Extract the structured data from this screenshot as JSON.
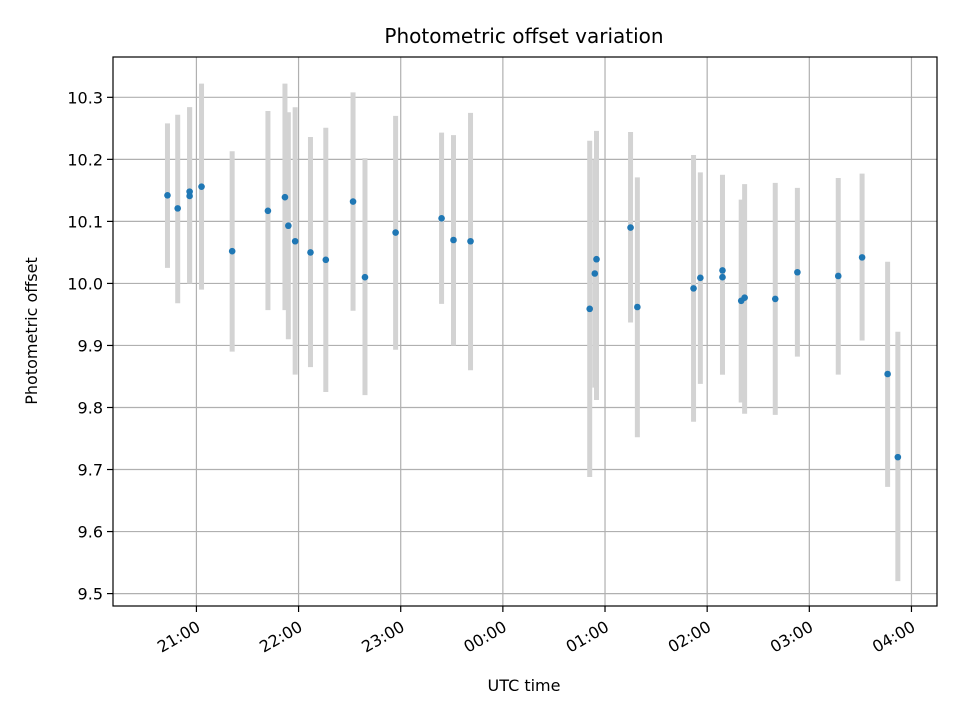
{
  "chart_data": {
    "type": "scatter",
    "title": "Photometric offset variation",
    "xlabel": "UTC time",
    "ylabel": "Photometric offset",
    "x_unit": "UTC datetime",
    "xlim": [
      "2000-01-01T20:11",
      "2000-01-02T04:15"
    ],
    "ylim": [
      9.48,
      10.365
    ],
    "grid": true,
    "x_ticks": [
      {
        "t": "2000-01-01T21:00",
        "label": "21:00"
      },
      {
        "t": "2000-01-01T22:00",
        "label": "22:00"
      },
      {
        "t": "2000-01-01T23:00",
        "label": "23:00"
      },
      {
        "t": "2000-01-02T00:00",
        "label": "00:00"
      },
      {
        "t": "2000-01-02T01:00",
        "label": "01:00"
      },
      {
        "t": "2000-01-02T02:00",
        "label": "02:00"
      },
      {
        "t": "2000-01-02T03:00",
        "label": "03:00"
      },
      {
        "t": "2000-01-02T04:00",
        "label": "04:00"
      }
    ],
    "y_ticks": [
      {
        "v": 9.5,
        "label": "9.5"
      },
      {
        "v": 9.6,
        "label": "9.6"
      },
      {
        "v": 9.7,
        "label": "9.7"
      },
      {
        "v": 9.8,
        "label": "9.8"
      },
      {
        "v": 9.9,
        "label": "9.9"
      },
      {
        "v": 10.0,
        "label": "10.0"
      },
      {
        "v": 10.1,
        "label": "10.1"
      },
      {
        "v": 10.2,
        "label": "10.2"
      },
      {
        "v": 10.3,
        "label": "10.3"
      }
    ],
    "colors": {
      "marker": "#1f77b4",
      "errorbar": "#d3d3d3",
      "grid": "#b0b0b0"
    },
    "points": [
      {
        "x": "2000-01-01T20:43",
        "y": 10.142,
        "lo": 10.025,
        "hi": 10.258
      },
      {
        "x": "2000-01-01T20:49",
        "y": 10.121,
        "lo": 9.968,
        "hi": 10.272
      },
      {
        "x": "2000-01-01T20:56",
        "y": 10.148,
        "lo": 10.0,
        "hi": 10.284
      },
      {
        "x": "2000-01-01T20:56",
        "y": 10.141,
        "lo": 10.0,
        "hi": 10.284
      },
      {
        "x": "2000-01-01T21:03",
        "y": 10.156,
        "lo": 9.99,
        "hi": 10.322
      },
      {
        "x": "2000-01-01T21:21",
        "y": 10.052,
        "lo": 9.89,
        "hi": 10.213
      },
      {
        "x": "2000-01-01T21:42",
        "y": 10.117,
        "lo": 9.957,
        "hi": 10.278
      },
      {
        "x": "2000-01-01T21:52",
        "y": 10.139,
        "lo": 9.957,
        "hi": 10.322
      },
      {
        "x": "2000-01-01T21:54",
        "y": 10.093,
        "lo": 9.91,
        "hi": 10.276
      },
      {
        "x": "2000-01-01T21:58",
        "y": 10.068,
        "lo": 9.853,
        "hi": 10.284
      },
      {
        "x": "2000-01-01T22:07",
        "y": 10.05,
        "lo": 9.865,
        "hi": 10.236
      },
      {
        "x": "2000-01-01T22:16",
        "y": 10.038,
        "lo": 9.825,
        "hi": 10.251
      },
      {
        "x": "2000-01-01T22:32",
        "y": 10.132,
        "lo": 9.956,
        "hi": 10.308
      },
      {
        "x": "2000-01-01T22:39",
        "y": 10.01,
        "lo": 9.82,
        "hi": 10.202
      },
      {
        "x": "2000-01-01T22:57",
        "y": 10.082,
        "lo": 9.893,
        "hi": 10.27
      },
      {
        "x": "2000-01-01T23:24",
        "y": 10.105,
        "lo": 9.967,
        "hi": 10.243
      },
      {
        "x": "2000-01-01T23:31",
        "y": 10.07,
        "lo": 9.9,
        "hi": 10.239
      },
      {
        "x": "2000-01-01T23:41",
        "y": 10.068,
        "lo": 9.86,
        "hi": 10.275
      },
      {
        "x": "2000-01-02T00:51",
        "y": 9.959,
        "lo": 9.688,
        "hi": 10.23
      },
      {
        "x": "2000-01-02T00:55",
        "y": 10.039,
        "lo": 9.812,
        "hi": 10.246
      },
      {
        "x": "2000-01-02T00:54",
        "y": 10.016,
        "lo": 9.832,
        "hi": 10.2
      },
      {
        "x": "2000-01-02T01:15",
        "y": 10.09,
        "lo": 9.937,
        "hi": 10.244
      },
      {
        "x": "2000-01-02T01:19",
        "y": 9.962,
        "lo": 9.752,
        "hi": 10.171
      },
      {
        "x": "2000-01-02T01:52",
        "y": 9.992,
        "lo": 9.777,
        "hi": 10.207
      },
      {
        "x": "2000-01-02T01:56",
        "y": 10.009,
        "lo": 9.838,
        "hi": 10.179
      },
      {
        "x": "2000-01-02T02:09",
        "y": 10.021,
        "lo": 9.853,
        "hi": 10.175
      },
      {
        "x": "2000-01-02T02:09",
        "y": 10.01,
        "lo": 9.853,
        "hi": 10.175
      },
      {
        "x": "2000-01-02T02:20",
        "y": 9.972,
        "lo": 9.808,
        "hi": 10.135
      },
      {
        "x": "2000-01-02T02:22",
        "y": 9.977,
        "lo": 9.79,
        "hi": 10.16
      },
      {
        "x": "2000-01-02T02:40",
        "y": 9.975,
        "lo": 9.788,
        "hi": 10.162
      },
      {
        "x": "2000-01-02T02:53",
        "y": 10.018,
        "lo": 9.882,
        "hi": 10.154
      },
      {
        "x": "2000-01-02T03:17",
        "y": 10.012,
        "lo": 9.853,
        "hi": 10.17
      },
      {
        "x": "2000-01-02T03:31",
        "y": 10.042,
        "lo": 9.908,
        "hi": 10.177
      },
      {
        "x": "2000-01-02T03:46",
        "y": 9.854,
        "lo": 9.672,
        "hi": 10.035
      },
      {
        "x": "2000-01-02T03:52",
        "y": 9.72,
        "lo": 9.52,
        "hi": 9.922
      }
    ]
  }
}
